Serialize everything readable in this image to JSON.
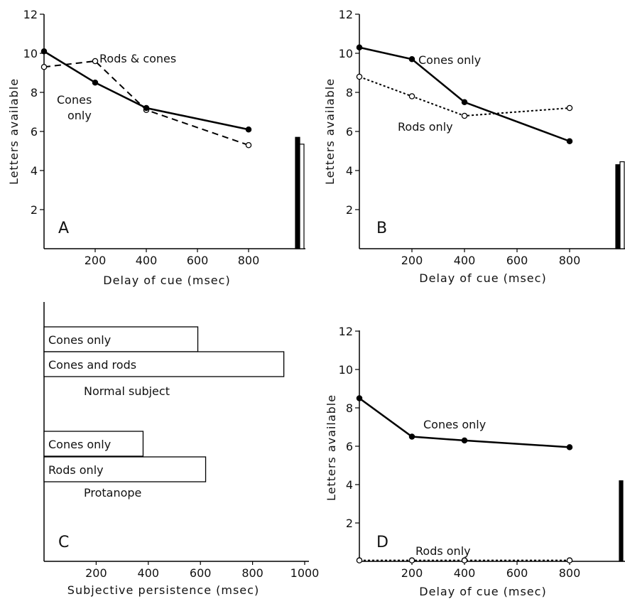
{
  "chart_data": [
    {
      "panel": "A",
      "type": "line",
      "xlabel": "Delay of cue (msec)",
      "ylabel": "Letters available",
      "xlim": [
        0,
        1000
      ],
      "ylim": [
        0,
        12
      ],
      "xticks": [
        200,
        400,
        600,
        800
      ],
      "yticks": [
        2,
        4,
        6,
        8,
        10,
        12
      ],
      "series": [
        {
          "name": "Rods & cones",
          "style": "dashed-open",
          "x": [
            0,
            200,
            400,
            800
          ],
          "y": [
            9.3,
            9.6,
            7.1,
            5.3
          ]
        },
        {
          "name": "Cones only",
          "style": "solid-filled",
          "x": [
            0,
            200,
            400,
            800
          ],
          "y": [
            10.1,
            8.5,
            7.2,
            6.1
          ]
        }
      ],
      "bars": [
        {
          "fill": "#000000",
          "value": 5.7
        },
        {
          "fill": "#ffffff",
          "value": 5.35
        }
      ]
    },
    {
      "panel": "B",
      "type": "line",
      "xlabel": "Delay of cue (msec)",
      "ylabel": "Letters available",
      "xlim": [
        0,
        1000
      ],
      "ylim": [
        0,
        12
      ],
      "xticks": [
        200,
        400,
        600,
        800
      ],
      "yticks": [
        2,
        4,
        6,
        8,
        10,
        12
      ],
      "series": [
        {
          "name": "Cones only",
          "style": "solid-filled",
          "x": [
            0,
            200,
            400,
            800
          ],
          "y": [
            10.3,
            9.7,
            7.5,
            5.5
          ]
        },
        {
          "name": "Rods only",
          "style": "dotted-open",
          "x": [
            0,
            200,
            400,
            800
          ],
          "y": [
            8.8,
            7.8,
            6.8,
            7.2
          ]
        }
      ],
      "bars": [
        {
          "fill": "#000000",
          "value": 4.3
        },
        {
          "fill": "#ffffff",
          "value": 4.45
        }
      ]
    },
    {
      "panel": "C",
      "type": "bar",
      "orientation": "horizontal",
      "xlabel": "Subjective persistence (msec)",
      "xlim": [
        0,
        1000
      ],
      "xticks": [
        200,
        400,
        600,
        800,
        1000
      ],
      "groups": [
        {
          "name": "Normal subject",
          "bars": [
            {
              "label": "Cones only",
              "value": 590
            },
            {
              "label": "Cones and rods",
              "value": 920
            }
          ]
        },
        {
          "name": "Protanope",
          "bars": [
            {
              "label": "Cones only",
              "value": 380
            },
            {
              "label": "Rods only",
              "value": 620
            }
          ]
        }
      ]
    },
    {
      "panel": "D",
      "type": "line",
      "xlabel": "Delay of cue (msec)",
      "ylabel": "Letters available",
      "xlim": [
        0,
        1000
      ],
      "ylim": [
        0,
        12
      ],
      "xticks": [
        200,
        400,
        600,
        800
      ],
      "yticks": [
        2,
        4,
        6,
        8,
        10,
        12
      ],
      "series": [
        {
          "name": "Cones only",
          "style": "solid-filled",
          "x": [
            0,
            200,
            400,
            800
          ],
          "y": [
            8.5,
            6.5,
            6.3,
            5.95
          ]
        },
        {
          "name": "Rods only",
          "style": "dotted-open",
          "x": [
            0,
            200,
            400,
            800
          ],
          "y": [
            0.05,
            0.05,
            0.05,
            0.05
          ]
        }
      ],
      "bars": [
        {
          "fill": "#000000",
          "value": 4.2
        }
      ]
    }
  ]
}
